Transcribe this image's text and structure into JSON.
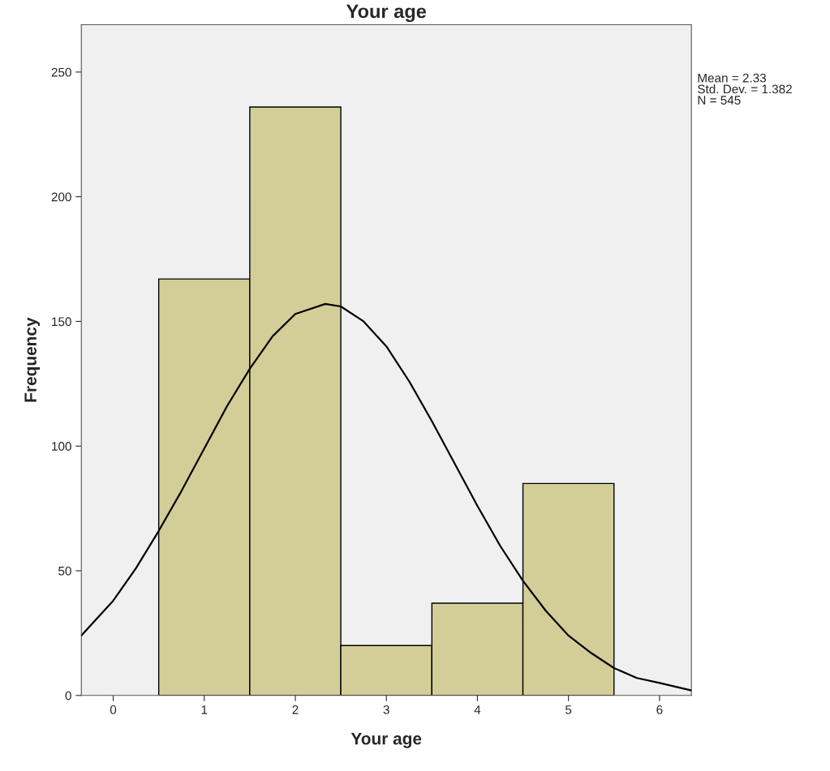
{
  "chart_data": {
    "type": "histogram",
    "title": "Your age",
    "xlabel": "Your age",
    "ylabel": "Frequency",
    "annotations": [
      "Mean = 2.33\nStd. Dev. = 1.382\nN = 545"
    ],
    "xlim": [
      -0.35,
      6.35
    ],
    "xticks": [
      0,
      1,
      2,
      3,
      4,
      5,
      6
    ],
    "ylim": [
      0,
      269
    ],
    "yticks": [
      0,
      50,
      100,
      150,
      200,
      250
    ],
    "grid": false,
    "legend": false,
    "bins": [
      0.5,
      1.5,
      2.5,
      3.5,
      4.5,
      5.5
    ],
    "values": [
      167,
      236,
      20,
      37,
      85
    ],
    "color": "#d3ce97",
    "series": [
      {
        "type": "line",
        "color": "#000000",
        "x": [
          -0.35,
          0,
          0.25,
          0.5,
          0.75,
          1,
          1.25,
          1.5,
          1.75,
          2,
          2.33,
          2.5,
          2.75,
          3,
          3.25,
          3.5,
          3.75,
          4,
          4.25,
          4.5,
          4.75,
          5,
          5.25,
          5.5,
          5.75,
          6,
          6.35
        ],
        "values": [
          24,
          38,
          51,
          66,
          82,
          99,
          116,
          131,
          144,
          153,
          157,
          156,
          150,
          140,
          126,
          110,
          93,
          76,
          60,
          46,
          34,
          24,
          17,
          11,
          7,
          5,
          2
        ]
      }
    ]
  }
}
